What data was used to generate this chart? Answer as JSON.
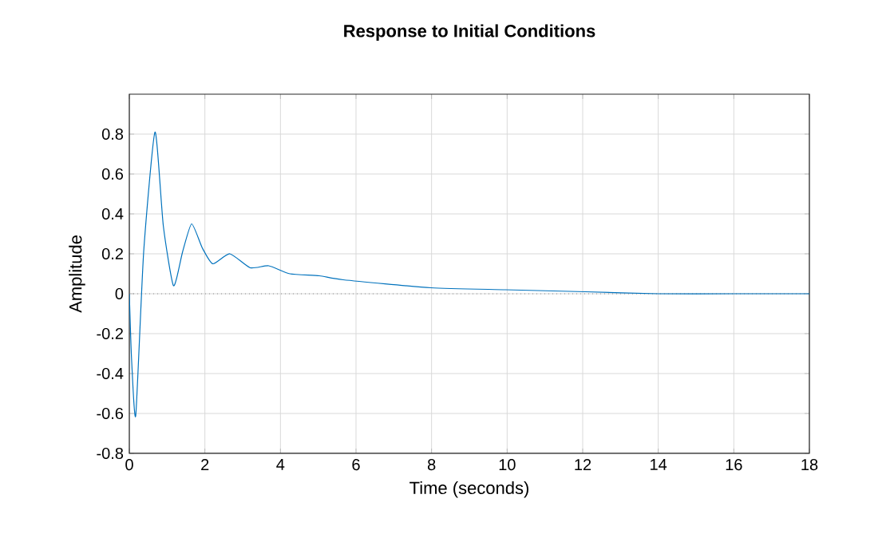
{
  "chart_data": {
    "type": "line",
    "title": "Response to Initial Conditions",
    "xlabel": "Time (seconds)",
    "ylabel": "Amplitude",
    "x": [
      0,
      0.06,
      0.17,
      0.38,
      0.68,
      0.9,
      1.17,
      1.41,
      1.65,
      1.93,
      2.21,
      2.66,
      3.2,
      3.69,
      4.25,
      5.03,
      5.66,
      7.98,
      9.96,
      12.07,
      14.0,
      16.0,
      18.0
    ],
    "series": [
      {
        "color": "#0072bd",
        "values": [
          0,
          -0.33,
          -0.61,
          0.21,
          0.81,
          0.34,
          0.04,
          0.21,
          0.35,
          0.23,
          0.15,
          0.2,
          0.13,
          0.14,
          0.1,
          0.09,
          0.07,
          0.03,
          0.02,
          0.01,
          0,
          0,
          0
        ]
      }
    ],
    "xlim": [
      0,
      18
    ],
    "ylim": [
      -0.8,
      1.0
    ],
    "xticks": [
      0,
      2,
      4,
      6,
      8,
      10,
      12,
      14,
      16,
      18
    ],
    "yticks": [
      -0.8,
      -0.6,
      -0.4,
      -0.2,
      0,
      0.2,
      0.4,
      0.6,
      0.8
    ],
    "ref_lines": [
      {
        "axis": "y",
        "value": 0,
        "color": "#808080",
        "line_style": "dotted"
      }
    ],
    "grid": true,
    "line_style": "solid",
    "marker": "none"
  }
}
